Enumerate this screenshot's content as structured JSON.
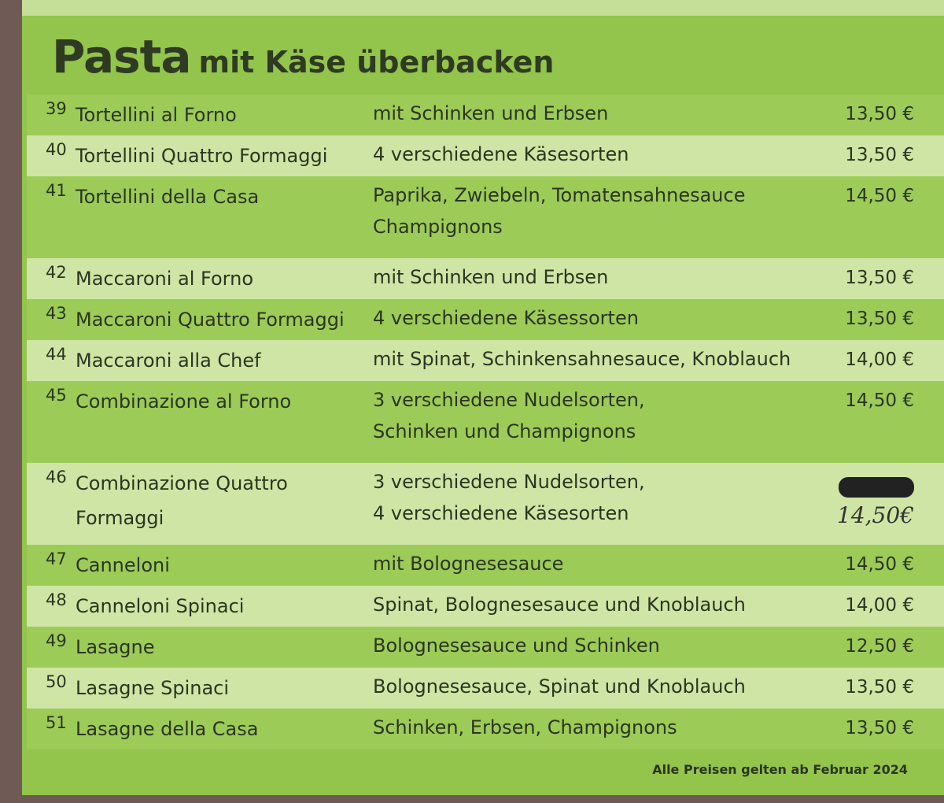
{
  "header": {
    "title": "Pasta",
    "subtitle": "mit Käse überbacken"
  },
  "items": [
    {
      "number": "39",
      "name": [
        "Tortellini al Forno"
      ],
      "description": [
        "mit Schinken und Erbsen"
      ],
      "price": "13,50 €"
    },
    {
      "number": "40",
      "name": [
        "Tortellini Quattro Formaggi"
      ],
      "description": [
        "4 verschiedene Käsesorten"
      ],
      "price": "13,50 €"
    },
    {
      "number": "41",
      "name": [
        "Tortellini della Casa"
      ],
      "description": [
        "Paprika, Zwiebeln, Tomatensahnesauce",
        "Champignons"
      ],
      "price": "14,50 €"
    },
    {
      "number": "42",
      "name": [
        "Maccaroni al Forno"
      ],
      "description": [
        "mit Schinken und Erbsen"
      ],
      "price": "13,50 €"
    },
    {
      "number": "43",
      "name": [
        "Maccaroni Quattro Formaggi"
      ],
      "description": [
        "4 verschiedene Käsessorten"
      ],
      "price": "13,50 €"
    },
    {
      "number": "44",
      "name": [
        "Maccaroni alla Chef"
      ],
      "description": [
        "mit Spinat, Schinkensahnesauce, Knoblauch"
      ],
      "price": "14,00 €"
    },
    {
      "number": "45",
      "name": [
        "Combinazione al Forno"
      ],
      "description": [
        "3 verschiedene Nudelsorten,",
        "Schinken und Champignons"
      ],
      "price": "14,50 €"
    },
    {
      "number": "46",
      "name": [
        "Combinazione Quattro",
        "Formaggi"
      ],
      "description": [
        "3 verschiedene Nudelsorten,",
        "4 verschiedene Käsesorten"
      ],
      "price": "14,50€",
      "price_handwritten": true
    },
    {
      "number": "47",
      "name": [
        "Canneloni"
      ],
      "description": [
        "mit Bolognesesauce"
      ],
      "price": "14,50 €"
    },
    {
      "number": "48",
      "name": [
        "Canneloni Spinaci"
      ],
      "description": [
        "Spinat, Bolognesesauce und Knoblauch"
      ],
      "price": "14,00 €"
    },
    {
      "number": "49",
      "name": [
        "Lasagne"
      ],
      "description": [
        "Bolognesesauce und Schinken"
      ],
      "price": "12,50 €"
    },
    {
      "number": "50",
      "name": [
        "Lasagne Spinaci"
      ],
      "description": [
        "Bolognesesauce, Spinat  und Knoblauch"
      ],
      "price": "13,50 €"
    },
    {
      "number": "51",
      "name": [
        "Lasagne della Casa"
      ],
      "description": [
        "Schinken, Erbsen, Champignons"
      ],
      "price": "13,50 €"
    }
  ],
  "footer": {
    "note": "Alle Preisen gelten ab Februar 2024"
  }
}
